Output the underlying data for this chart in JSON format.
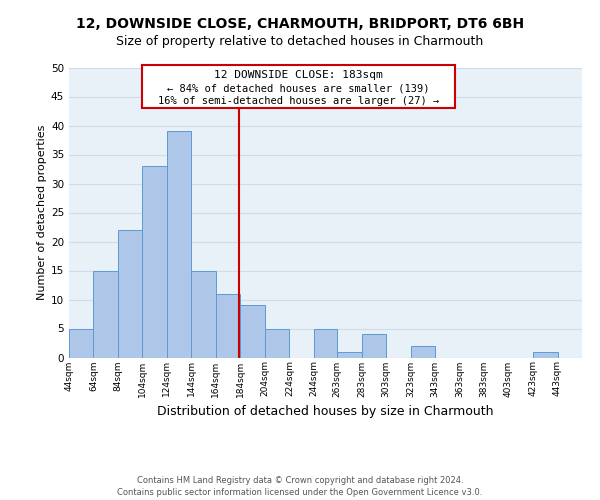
{
  "title": "12, DOWNSIDE CLOSE, CHARMOUTH, BRIDPORT, DT6 6BH",
  "subtitle": "Size of property relative to detached houses in Charmouth",
  "xlabel": "Distribution of detached houses by size in Charmouth",
  "ylabel": "Number of detached properties",
  "bar_left_edges": [
    44,
    64,
    84,
    104,
    124,
    144,
    164,
    184,
    204,
    224,
    244,
    263,
    283,
    303,
    323,
    343,
    363,
    383,
    403,
    423
  ],
  "bar_heights": [
    5,
    15,
    22,
    33,
    39,
    15,
    11,
    9,
    5,
    0,
    5,
    1,
    4,
    0,
    2,
    0,
    0,
    0,
    0,
    1
  ],
  "bar_widths": [
    20,
    20,
    20,
    20,
    20,
    20,
    20,
    20,
    20,
    20,
    19,
    20,
    20,
    20,
    20,
    20,
    20,
    20,
    20,
    20
  ],
  "bar_color": "#aec6e8",
  "bar_edgecolor": "#5b9bd5",
  "vline_x": 183,
  "vline_color": "#cc0000",
  "xlim": [
    44,
    463
  ],
  "ylim": [
    0,
    50
  ],
  "yticks": [
    0,
    5,
    10,
    15,
    20,
    25,
    30,
    35,
    40,
    45,
    50
  ],
  "xtick_labels": [
    "44sqm",
    "64sqm",
    "84sqm",
    "104sqm",
    "124sqm",
    "144sqm",
    "164sqm",
    "184sqm",
    "204sqm",
    "224sqm",
    "244sqm",
    "263sqm",
    "283sqm",
    "303sqm",
    "323sqm",
    "343sqm",
    "363sqm",
    "383sqm",
    "403sqm",
    "423sqm",
    "443sqm"
  ],
  "xtick_positions": [
    44,
    64,
    84,
    104,
    124,
    144,
    164,
    184,
    204,
    224,
    244,
    263,
    283,
    303,
    323,
    343,
    363,
    383,
    403,
    423,
    443
  ],
  "annotation_title": "12 DOWNSIDE CLOSE: 183sqm",
  "annotation_line1": "← 84% of detached houses are smaller (139)",
  "annotation_line2": "16% of semi-detached houses are larger (27) →",
  "footer_line1": "Contains HM Land Registry data © Crown copyright and database right 2024.",
  "footer_line2": "Contains public sector information licensed under the Open Government Licence v3.0.",
  "grid_color": "#d0dce8",
  "background_color": "#e8f0f8",
  "title_fontsize": 10,
  "subtitle_fontsize": 9,
  "ylabel_fontsize": 8,
  "xlabel_fontsize": 9
}
